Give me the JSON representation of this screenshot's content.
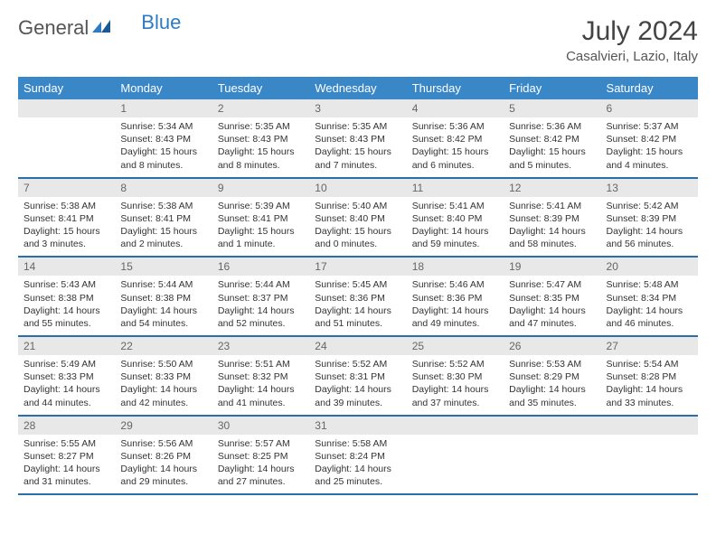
{
  "logo": {
    "word1": "General",
    "word2": "Blue"
  },
  "title": {
    "month": "July 2024",
    "location": "Casalvieri, Lazio, Italy"
  },
  "colors": {
    "header_bg": "#3a87c8",
    "header_text": "#ffffff",
    "daynum_bg": "#e8e8e8",
    "row_divider": "#2b6fa8",
    "logo_blue": "#2e7bc4",
    "text": "#333333"
  },
  "days": [
    "Sunday",
    "Monday",
    "Tuesday",
    "Wednesday",
    "Thursday",
    "Friday",
    "Saturday"
  ],
  "weeks": [
    [
      null,
      {
        "n": "1",
        "sr": "5:34 AM",
        "ss": "8:43 PM",
        "dl": "15 hours and 8 minutes."
      },
      {
        "n": "2",
        "sr": "5:35 AM",
        "ss": "8:43 PM",
        "dl": "15 hours and 8 minutes."
      },
      {
        "n": "3",
        "sr": "5:35 AM",
        "ss": "8:43 PM",
        "dl": "15 hours and 7 minutes."
      },
      {
        "n": "4",
        "sr": "5:36 AM",
        "ss": "8:42 PM",
        "dl": "15 hours and 6 minutes."
      },
      {
        "n": "5",
        "sr": "5:36 AM",
        "ss": "8:42 PM",
        "dl": "15 hours and 5 minutes."
      },
      {
        "n": "6",
        "sr": "5:37 AM",
        "ss": "8:42 PM",
        "dl": "15 hours and 4 minutes."
      }
    ],
    [
      {
        "n": "7",
        "sr": "5:38 AM",
        "ss": "8:41 PM",
        "dl": "15 hours and 3 minutes."
      },
      {
        "n": "8",
        "sr": "5:38 AM",
        "ss": "8:41 PM",
        "dl": "15 hours and 2 minutes."
      },
      {
        "n": "9",
        "sr": "5:39 AM",
        "ss": "8:41 PM",
        "dl": "15 hours and 1 minute."
      },
      {
        "n": "10",
        "sr": "5:40 AM",
        "ss": "8:40 PM",
        "dl": "15 hours and 0 minutes."
      },
      {
        "n": "11",
        "sr": "5:41 AM",
        "ss": "8:40 PM",
        "dl": "14 hours and 59 minutes."
      },
      {
        "n": "12",
        "sr": "5:41 AM",
        "ss": "8:39 PM",
        "dl": "14 hours and 58 minutes."
      },
      {
        "n": "13",
        "sr": "5:42 AM",
        "ss": "8:39 PM",
        "dl": "14 hours and 56 minutes."
      }
    ],
    [
      {
        "n": "14",
        "sr": "5:43 AM",
        "ss": "8:38 PM",
        "dl": "14 hours and 55 minutes."
      },
      {
        "n": "15",
        "sr": "5:44 AM",
        "ss": "8:38 PM",
        "dl": "14 hours and 54 minutes."
      },
      {
        "n": "16",
        "sr": "5:44 AM",
        "ss": "8:37 PM",
        "dl": "14 hours and 52 minutes."
      },
      {
        "n": "17",
        "sr": "5:45 AM",
        "ss": "8:36 PM",
        "dl": "14 hours and 51 minutes."
      },
      {
        "n": "18",
        "sr": "5:46 AM",
        "ss": "8:36 PM",
        "dl": "14 hours and 49 minutes."
      },
      {
        "n": "19",
        "sr": "5:47 AM",
        "ss": "8:35 PM",
        "dl": "14 hours and 47 minutes."
      },
      {
        "n": "20",
        "sr": "5:48 AM",
        "ss": "8:34 PM",
        "dl": "14 hours and 46 minutes."
      }
    ],
    [
      {
        "n": "21",
        "sr": "5:49 AM",
        "ss": "8:33 PM",
        "dl": "14 hours and 44 minutes."
      },
      {
        "n": "22",
        "sr": "5:50 AM",
        "ss": "8:33 PM",
        "dl": "14 hours and 42 minutes."
      },
      {
        "n": "23",
        "sr": "5:51 AM",
        "ss": "8:32 PM",
        "dl": "14 hours and 41 minutes."
      },
      {
        "n": "24",
        "sr": "5:52 AM",
        "ss": "8:31 PM",
        "dl": "14 hours and 39 minutes."
      },
      {
        "n": "25",
        "sr": "5:52 AM",
        "ss": "8:30 PM",
        "dl": "14 hours and 37 minutes."
      },
      {
        "n": "26",
        "sr": "5:53 AM",
        "ss": "8:29 PM",
        "dl": "14 hours and 35 minutes."
      },
      {
        "n": "27",
        "sr": "5:54 AM",
        "ss": "8:28 PM",
        "dl": "14 hours and 33 minutes."
      }
    ],
    [
      {
        "n": "28",
        "sr": "5:55 AM",
        "ss": "8:27 PM",
        "dl": "14 hours and 31 minutes."
      },
      {
        "n": "29",
        "sr": "5:56 AM",
        "ss": "8:26 PM",
        "dl": "14 hours and 29 minutes."
      },
      {
        "n": "30",
        "sr": "5:57 AM",
        "ss": "8:25 PM",
        "dl": "14 hours and 27 minutes."
      },
      {
        "n": "31",
        "sr": "5:58 AM",
        "ss": "8:24 PM",
        "dl": "14 hours and 25 minutes."
      },
      null,
      null,
      null
    ]
  ],
  "labels": {
    "sunrise": "Sunrise:",
    "sunset": "Sunset:",
    "daylight": "Daylight:"
  }
}
